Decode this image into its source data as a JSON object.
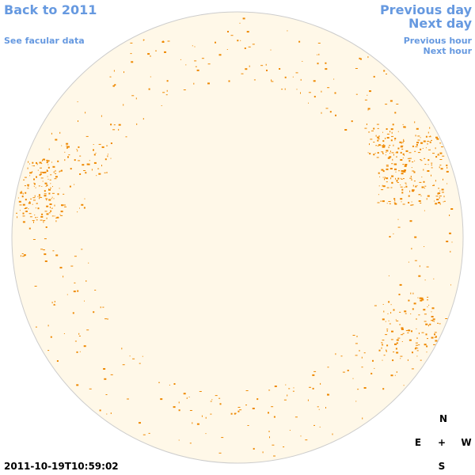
{
  "nav": {
    "back_label": "Back to 2011",
    "facular_label": "See facular data",
    "prev_day_label": "Previous day",
    "next_day_label": "Next day",
    "prev_hour_label": "Previous hour",
    "next_hour_label": "Next hour"
  },
  "timestamp": "2011-10-19T10:59:02",
  "compass": {
    "north": "N",
    "east": "E",
    "center": "+",
    "west": "W",
    "south": "S"
  },
  "colors": {
    "disk_fill": "#fff8e8",
    "disk_outline": "#cccccc",
    "feature": "#ee8800",
    "link": "#6699e0"
  }
}
